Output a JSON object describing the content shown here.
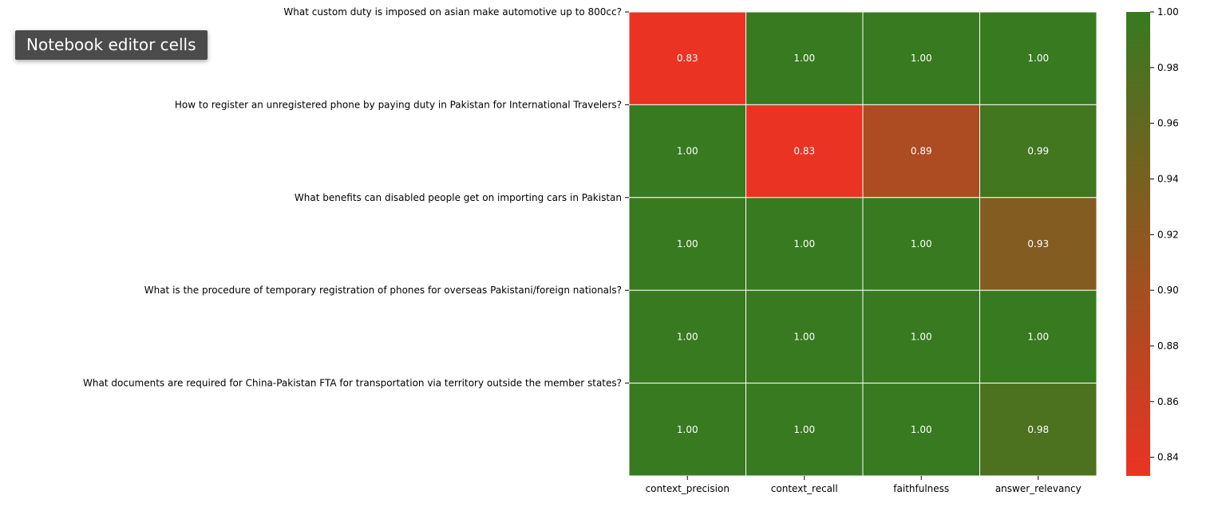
{
  "tooltip": {
    "text": "Notebook editor cells"
  },
  "chart_data": {
    "type": "heatmap",
    "rows": [
      "What custom duty is imposed on asian make automotive up to 800cc?",
      "How to register an unregistered phone by paying duty in Pakistan for International Travelers?",
      "What benefits can disabled people get on importing cars in Pakistan",
      "What is the procedure of temporary registration of phones for overseas Pakistani/foreign nationals?",
      "What documents are required for China-Pakistan FTA for transportation via territory outside the member states?"
    ],
    "columns": [
      "context_precision",
      "context_recall",
      "faithfulness",
      "answer_relevancy"
    ],
    "values": [
      [
        0.83,
        1.0,
        1.0,
        1.0
      ],
      [
        1.0,
        0.83,
        0.89,
        0.99
      ],
      [
        1.0,
        1.0,
        1.0,
        0.93
      ],
      [
        1.0,
        1.0,
        1.0,
        1.0
      ],
      [
        1.0,
        1.0,
        1.0,
        0.98
      ]
    ],
    "value_labels": [
      [
        "0.83",
        "1.00",
        "1.00",
        "1.00"
      ],
      [
        "1.00",
        "0.83",
        "0.89",
        "0.99"
      ],
      [
        "1.00",
        "1.00",
        "1.00",
        "0.93"
      ],
      [
        "1.00",
        "1.00",
        "1.00",
        "1.00"
      ],
      [
        "1.00",
        "1.00",
        "1.00",
        "0.98"
      ]
    ],
    "colorbar": {
      "min": 0.8333,
      "max": 1.0,
      "ticks": [
        0.84,
        0.86,
        0.88,
        0.9,
        0.92,
        0.94,
        0.96,
        0.98,
        1.0
      ],
      "tick_labels": [
        "0.84",
        "0.86",
        "0.88",
        "0.90",
        "0.92",
        "0.94",
        "0.96",
        "0.98",
        "1.00"
      ],
      "low_color": "#ea3323",
      "high_color": "#377a1f"
    }
  }
}
